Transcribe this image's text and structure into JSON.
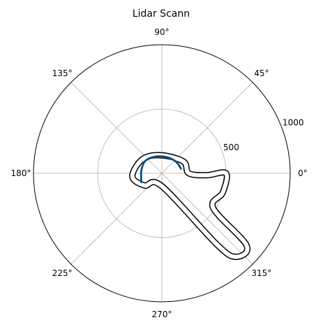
{
  "chart_data": {
    "type": "scatter",
    "projection": "polar",
    "title": "Lidar Scann",
    "theta_ticks": [
      "0°",
      "45°",
      "90°",
      "135°",
      "180°",
      "225°",
      "270°",
      "315°"
    ],
    "r_ticks": [
      "500",
      "1000"
    ],
    "r_tick_values": [
      500,
      1000
    ],
    "rlim": [
      0,
      1000
    ],
    "grid": true,
    "colors": {
      "trace": "#000000",
      "highlight": "#1f77b4",
      "grid": "#b0b0b0"
    },
    "series": [
      {
        "role": "lidar trace",
        "color": "#000000",
        "points_xy": [
          [
            -135,
            -95
          ],
          [
            -230,
            -25
          ],
          [
            -150,
            110
          ],
          [
            0,
            140
          ],
          [
            170,
            90
          ],
          [
            210,
            0
          ],
          [
            350,
            -15
          ],
          [
            500,
            0
          ],
          [
            475,
            -150
          ],
          [
            400,
            -270
          ],
          [
            660,
            -560
          ],
          [
            575,
            -650
          ],
          [
            425,
            -550
          ],
          [
            0,
            -100
          ],
          [
            -135,
            -95
          ]
        ]
      },
      {
        "role": "near-origin arc",
        "color": "#1f77b4",
        "points_xy": [
          [
            -160,
            -70
          ],
          [
            -160,
            20
          ],
          [
            -130,
            95
          ],
          [
            -50,
            130
          ],
          [
            40,
            125
          ],
          [
            110,
            90
          ],
          [
            150,
            35
          ]
        ]
      }
    ]
  }
}
